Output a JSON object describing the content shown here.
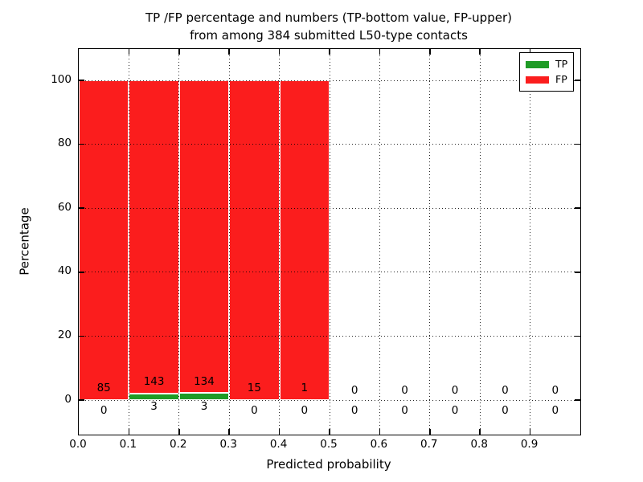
{
  "title": {
    "line1": "TP /FP percentage and numbers (TP-bottom value, FP-upper)",
    "line2": "from among 384 submitted L50-type contacts"
  },
  "axes": {
    "x_label": "Predicted probability",
    "y_label": "Percentage",
    "x_tick_labels": [
      "0.0",
      "0.1",
      "0.2",
      "0.3",
      "0.4",
      "0.5",
      "0.6",
      "0.7",
      "0.8",
      "0.9"
    ],
    "y_tick_labels": [
      "0",
      "20",
      "40",
      "60",
      "80",
      "100"
    ]
  },
  "legend": {
    "entries": [
      {
        "label": "TP",
        "color": "#1f9b26"
      },
      {
        "label": "FP",
        "color": "#fb1d1d"
      }
    ]
  },
  "chart_data": {
    "type": "bar",
    "stacked": true,
    "title": "TP /FP percentage and numbers (TP-bottom value, FP-upper) from among 384 submitted L50-type contacts",
    "xlabel": "Predicted probability",
    "ylabel": "Percentage",
    "total_contacts": 384,
    "bin_edges": [
      0.0,
      0.1,
      0.2,
      0.3,
      0.4,
      0.5,
      0.6,
      0.7,
      0.8,
      0.9,
      1.0
    ],
    "x_ticks": [
      0.0,
      0.1,
      0.2,
      0.3,
      0.4,
      0.5,
      0.6,
      0.7,
      0.8,
      0.9
    ],
    "y_ticks": [
      0,
      20,
      40,
      60,
      80,
      100
    ],
    "xlim": [
      0.0,
      1.0
    ],
    "ylim": [
      -11,
      110
    ],
    "grid": "dotted, drawn above bars",
    "legend_position": "upper right",
    "series": [
      {
        "name": "TP",
        "color": "#1f9b26",
        "counts": [
          0,
          3,
          3,
          0,
          0,
          0,
          0,
          0,
          0,
          0
        ],
        "percent": [
          0,
          2.05,
          2.19,
          0,
          0,
          0,
          0,
          0,
          0,
          0
        ]
      },
      {
        "name": "FP",
        "color": "#fb1d1d",
        "counts": [
          85,
          143,
          134,
          15,
          1,
          0,
          0,
          0,
          0,
          0
        ],
        "percent": [
          100,
          97.95,
          97.81,
          100,
          100,
          0,
          0,
          0,
          0,
          0
        ]
      }
    ]
  }
}
